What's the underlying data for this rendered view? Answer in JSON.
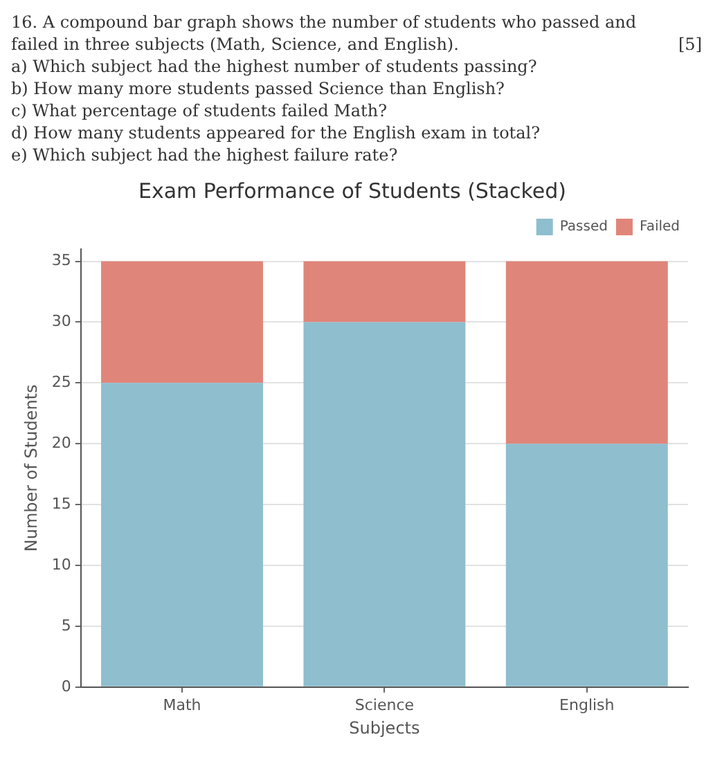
{
  "chart_data": {
    "type": "bar",
    "title": "Exam Performance of Students (Stacked)",
    "annotations": [
      "16. A compound bar graph shows the number of students who passed and failed in three subjects (Math, Science, and English).",
      "[5]",
      "a) Which subject had the highest number of students passing?",
      "b) How many more students passed Science than English?",
      "c) What percentage of students failed Math?",
      "d) How many students appeared for the English exam in total?",
      "e) Which subject had the highest failure rate?"
    ],
    "xlabel": "Subjects",
    "ylabel": "Number of Students",
    "categories": [
      "Math",
      "Science",
      "English"
    ],
    "series": [
      {
        "name": "Passed",
        "color": "#8fbecf",
        "values": [
          25,
          30,
          20
        ]
      },
      {
        "name": "Failed",
        "color": "#e0857a",
        "values": [
          10,
          5,
          15
        ]
      }
    ],
    "stacked": true,
    "ylim": [
      0,
      36
    ],
    "yticks": [
      0,
      5,
      10,
      15,
      20,
      25,
      30,
      35
    ],
    "grid": "y",
    "legend": "top right"
  }
}
